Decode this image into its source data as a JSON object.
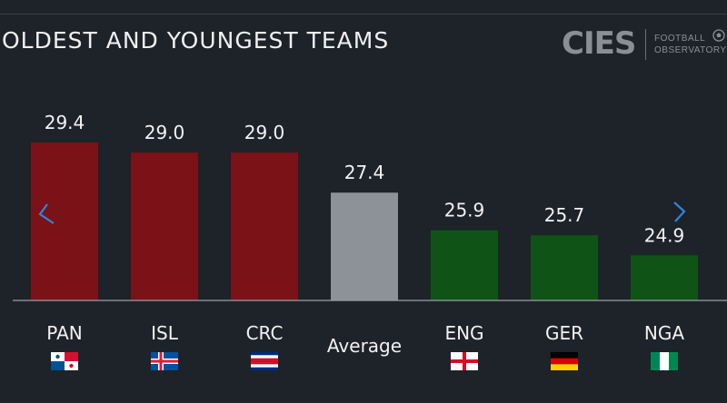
{
  "title": "OLDEST AND YOUNGEST TEAMS",
  "logo": {
    "mark": "CIES",
    "line1": "FOOTBALL",
    "line2": "OBSERVATORY"
  },
  "colors": {
    "oldest": "#7a1218",
    "average": "#8d9198",
    "youngest": "#0f5416",
    "background": "#1e2229",
    "nav": "#2e86de"
  },
  "navigation": {
    "prev_icon": "chevron-left-icon",
    "next_icon": "chevron-right-icon"
  },
  "chart_data": {
    "type": "bar",
    "categories": [
      "PAN",
      "ISL",
      "CRC",
      "Average",
      "ENG",
      "GER",
      "NGA"
    ],
    "values": [
      29.4,
      29.0,
      29.0,
      27.4,
      25.9,
      25.7,
      24.9
    ],
    "value_labels": [
      "29.4",
      "29.0",
      "29.0",
      "27.4",
      "25.9",
      "25.7",
      "24.9"
    ],
    "groups": [
      "oldest",
      "oldest",
      "oldest",
      "average",
      "youngest",
      "youngest",
      "youngest"
    ],
    "flags": [
      "panama",
      "iceland",
      "costa-rica",
      "",
      "england",
      "germany",
      "nigeria"
    ],
    "ylim": [
      23.1,
      29.4
    ],
    "title": "OLDEST AND YOUNGEST TEAMS",
    "xlabel": "",
    "ylabel": "",
    "grid": false,
    "legend": "none"
  }
}
